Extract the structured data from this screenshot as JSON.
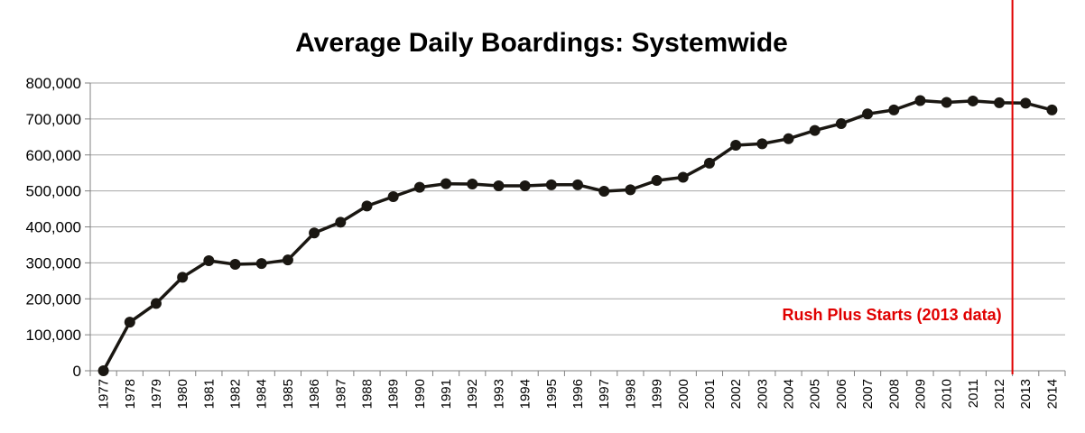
{
  "chart_data": {
    "type": "line",
    "title": "Average Daily Boardings: Systemwide",
    "xlabel": "",
    "ylabel": "",
    "ylim": [
      0,
      800000
    ],
    "yticks": [
      "0",
      "100,000",
      "200,000",
      "300,000",
      "400,000",
      "500,000",
      "600,000",
      "700,000",
      "800,000"
    ],
    "grid": true,
    "legend": "none",
    "categories": [
      "1977",
      "1978",
      "1979",
      "1980",
      "1981",
      "1982",
      "1984",
      "1985",
      "1986",
      "1987",
      "1988",
      "1989",
      "1990",
      "1991",
      "1992",
      "1993",
      "1994",
      "1995",
      "1996",
      "1997",
      "1998",
      "1999",
      "2000",
      "2001",
      "2002",
      "2003",
      "2004",
      "2005",
      "2006",
      "2007",
      "2008",
      "2009",
      "2010",
      "2011",
      "2012",
      "2013",
      "2014"
    ],
    "series": [
      {
        "values": [
          0,
          135000,
          187000,
          260000,
          306000,
          296000,
          298000,
          308000,
          383000,
          413000,
          458000,
          484000,
          510000,
          520000,
          519000,
          514000,
          514000,
          517000,
          517000,
          499000,
          503000,
          529000,
          538000,
          577000,
          627000,
          631000,
          645000,
          668000,
          687000,
          714000,
          725000,
          751000,
          746000,
          750000,
          745000,
          744000,
          725000
        ],
        "color": "#1a1712"
      }
    ],
    "annotations": [
      {
        "type": "vline",
        "between": [
          "2012",
          "2013"
        ],
        "color": "#e00000"
      },
      {
        "type": "text",
        "text": "Rush Plus Starts (2013 data)",
        "color": "#e00000"
      }
    ]
  }
}
